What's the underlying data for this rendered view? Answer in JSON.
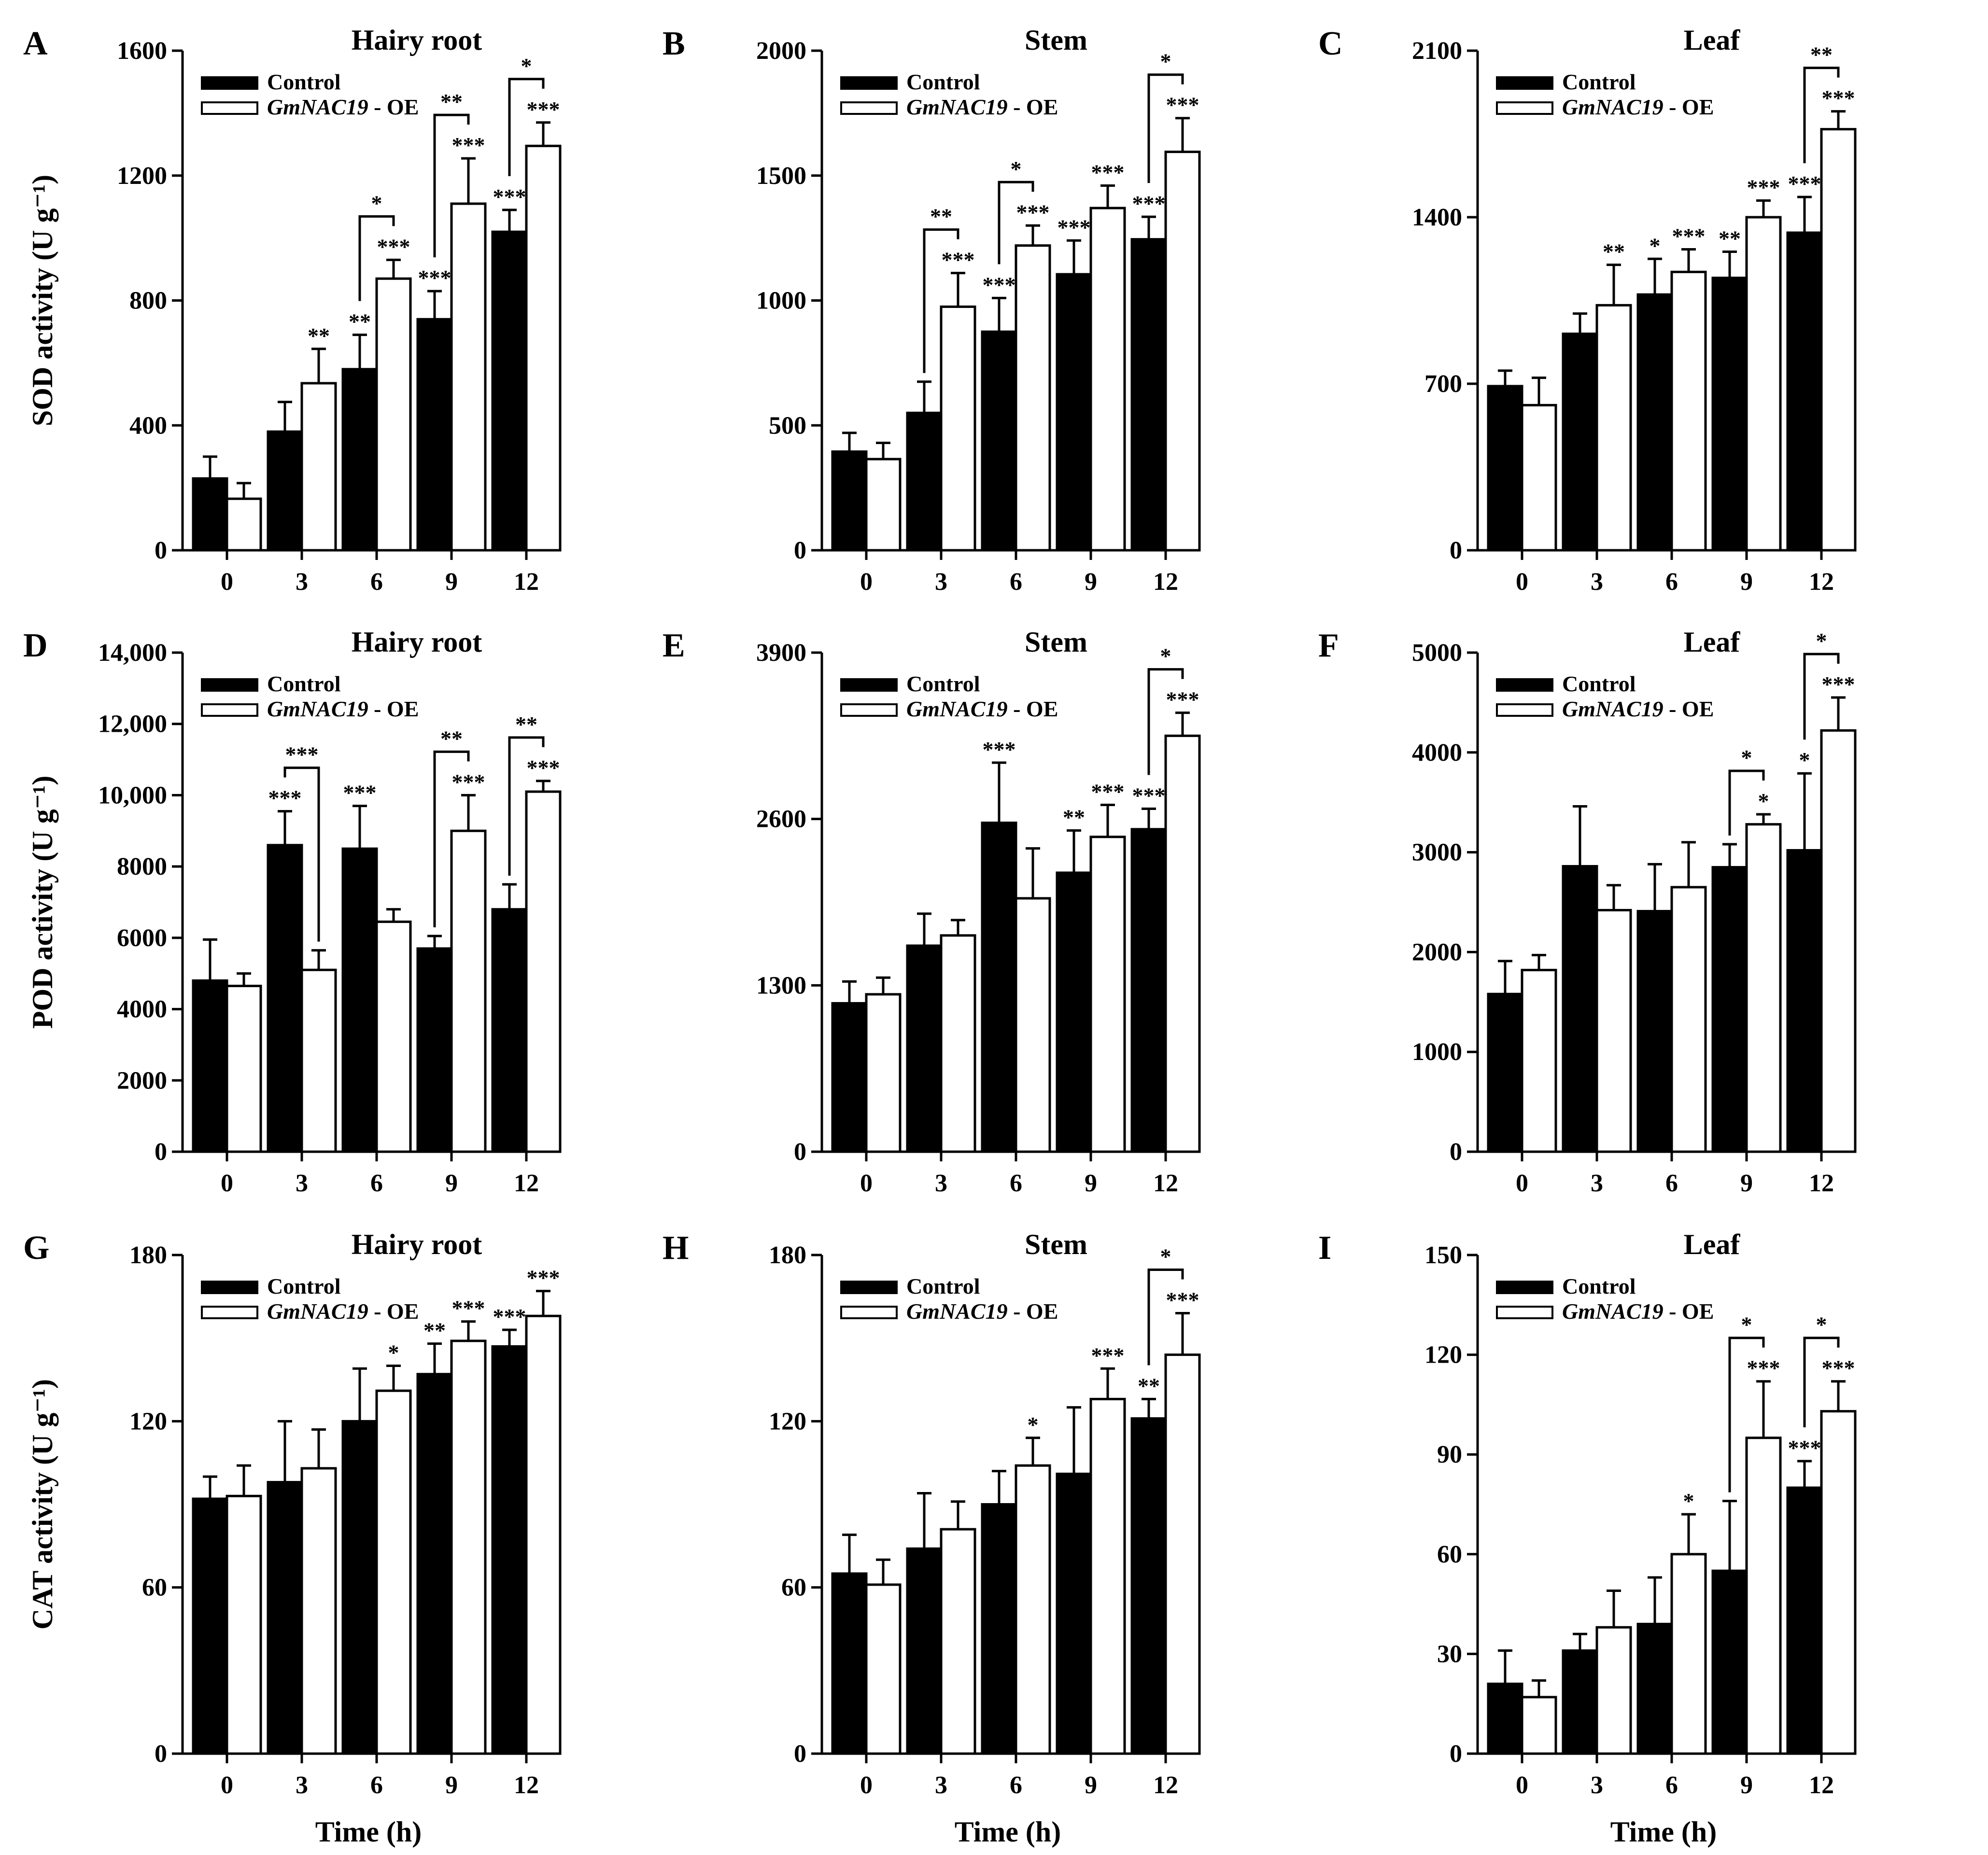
{
  "chart_data": [
    {
      "id": "A",
      "type": "bar",
      "title": "Hairy root",
      "ylabel": "SOD activity (U g⁻¹)",
      "xlabel": "",
      "categories": [
        "0",
        "3",
        "6",
        "9",
        "12"
      ],
      "ylim": [
        0,
        1600
      ],
      "yticks": [
        "0",
        "400",
        "800",
        "1200",
        "1600"
      ],
      "legend": [
        "Control",
        "GmNAC19 - OE"
      ],
      "legend_placement": "top-left",
      "series": [
        {
          "name": "Control",
          "values": [
            230,
            380,
            580,
            740,
            1020
          ],
          "errors": [
            70,
            95,
            110,
            90,
            70
          ],
          "stars": [
            "",
            "",
            "**",
            "***",
            "***"
          ]
        },
        {
          "name": "GmNAC19 - OE",
          "values": [
            165,
            535,
            870,
            1110,
            1295
          ],
          "errors": [
            50,
            110,
            60,
            145,
            75
          ],
          "stars": [
            "",
            "**",
            "***",
            "***",
            "***"
          ]
        }
      ],
      "brackets": [
        {
          "cat": 2,
          "label": "*"
        },
        {
          "cat": 3,
          "label": "**"
        },
        {
          "cat": 4,
          "label": "*"
        }
      ]
    },
    {
      "id": "B",
      "type": "bar",
      "title": "Stem",
      "ylabel": "",
      "xlabel": "",
      "categories": [
        "0",
        "3",
        "6",
        "9",
        "12"
      ],
      "ylim": [
        0,
        2000
      ],
      "yticks": [
        "0",
        "500",
        "1000",
        "1500",
        "2000"
      ],
      "legend": [
        "Control",
        "GmNAC19 - OE"
      ],
      "legend_placement": "top-left",
      "series": [
        {
          "name": "Control",
          "values": [
            395,
            550,
            875,
            1105,
            1245
          ],
          "errors": [
            75,
            125,
            135,
            135,
            90
          ],
          "stars": [
            "",
            "",
            "***",
            "***",
            "***"
          ]
        },
        {
          "name": "GmNAC19 - OE",
          "values": [
            365,
            975,
            1220,
            1370,
            1595
          ],
          "errors": [
            65,
            135,
            80,
            90,
            135
          ],
          "stars": [
            "",
            "***",
            "***",
            "***",
            "***"
          ]
        }
      ],
      "brackets": [
        {
          "cat": 1,
          "label": "**"
        },
        {
          "cat": 2,
          "label": "*"
        },
        {
          "cat": 4,
          "label": "*"
        }
      ]
    },
    {
      "id": "C",
      "type": "bar",
      "title": "Leaf",
      "ylabel": "",
      "xlabel": "",
      "categories": [
        "0",
        "3",
        "6",
        "9",
        "12"
      ],
      "ylim": [
        0,
        2100
      ],
      "yticks": [
        "0",
        "700",
        "1400",
        "2100"
      ],
      "legend": [
        "Control",
        "GmNAC19 - OE"
      ],
      "legend_placement": "top-left",
      "series": [
        {
          "name": "Control",
          "values": [
            690,
            910,
            1075,
            1145,
            1335
          ],
          "errors": [
            65,
            85,
            150,
            110,
            150
          ],
          "stars": [
            "",
            "",
            "*",
            "**",
            "***"
          ]
        },
        {
          "name": "GmNAC19 - OE",
          "values": [
            610,
            1030,
            1170,
            1400,
            1770
          ],
          "errors": [
            115,
            170,
            95,
            70,
            75
          ],
          "stars": [
            "",
            "**",
            "***",
            "***",
            "***"
          ]
        }
      ],
      "brackets": [
        {
          "cat": 4,
          "label": "**"
        }
      ]
    },
    {
      "id": "D",
      "type": "bar",
      "title": "Hairy root",
      "ylabel": "POD activity (U g⁻¹)",
      "xlabel": "",
      "categories": [
        "0",
        "3",
        "6",
        "9",
        "12"
      ],
      "ylim": [
        0,
        14000
      ],
      "yticks": [
        "0",
        "2000",
        "4000",
        "6000",
        "8000",
        "10,000",
        "12,000",
        "14,000"
      ],
      "legend": [
        "Control",
        "GmNAC19 - OE"
      ],
      "legend_placement": "top-left",
      "series": [
        {
          "name": "Control",
          "values": [
            4800,
            8600,
            8500,
            5700,
            6800
          ],
          "errors": [
            1150,
            950,
            1200,
            350,
            700
          ],
          "stars": [
            "",
            "***",
            "***",
            "",
            ""
          ]
        },
        {
          "name": "GmNAC19 - OE",
          "values": [
            4650,
            5100,
            6450,
            9000,
            10100
          ],
          "errors": [
            350,
            550,
            350,
            1000,
            300
          ],
          "stars": [
            "",
            "",
            "",
            "***",
            "***"
          ]
        }
      ],
      "brackets": [
        {
          "cat": 1,
          "label": "***"
        },
        {
          "cat": 3,
          "label": "**"
        },
        {
          "cat": 4,
          "label": "**"
        }
      ]
    },
    {
      "id": "E",
      "type": "bar",
      "title": "Stem",
      "ylabel": "",
      "xlabel": "",
      "categories": [
        "0",
        "3",
        "6",
        "9",
        "12"
      ],
      "ylim": [
        0,
        3900
      ],
      "yticks": [
        "0",
        "1300",
        "2600",
        "3900"
      ],
      "legend": [
        "Control",
        "GmNAC19 - OE"
      ],
      "legend_placement": "top-left",
      "series": [
        {
          "name": "Control",
          "values": [
            1160,
            1610,
            2570,
            2180,
            2520
          ],
          "errors": [
            170,
            250,
            470,
            330,
            160
          ],
          "stars": [
            "",
            "",
            "***",
            "**",
            "***"
          ]
        },
        {
          "name": "GmNAC19 - OE",
          "values": [
            1230,
            1690,
            1980,
            2460,
            3250
          ],
          "errors": [
            130,
            120,
            390,
            250,
            180
          ],
          "stars": [
            "",
            "",
            "",
            "***",
            "***"
          ]
        }
      ],
      "brackets": [
        {
          "cat": 4,
          "label": "*"
        }
      ]
    },
    {
      "id": "F",
      "type": "bar",
      "title": "Leaf",
      "ylabel": "",
      "xlabel": "",
      "categories": [
        "0",
        "3",
        "6",
        "9",
        "12"
      ],
      "ylim": [
        0,
        5000
      ],
      "yticks": [
        "0",
        "1000",
        "2000",
        "3000",
        "4000",
        "5000"
      ],
      "legend": [
        "Control",
        "GmNAC19 - OE"
      ],
      "legend_placement": "top-left",
      "series": [
        {
          "name": "Control",
          "values": [
            1580,
            2860,
            2410,
            2850,
            3020
          ],
          "errors": [
            330,
            600,
            470,
            230,
            770
          ],
          "stars": [
            "",
            "",
            "",
            "",
            "*"
          ]
        },
        {
          "name": "GmNAC19 - OE",
          "values": [
            1820,
            2420,
            2650,
            3280,
            4220
          ],
          "errors": [
            150,
            250,
            450,
            100,
            330
          ],
          "stars": [
            "",
            "",
            "",
            "*",
            "***"
          ]
        }
      ],
      "brackets": [
        {
          "cat": 3,
          "label": "*"
        },
        {
          "cat": 4,
          "label": "*"
        }
      ]
    },
    {
      "id": "G",
      "type": "bar",
      "title": "Hairy root",
      "ylabel": "CAT activity (U g⁻¹)",
      "xlabel": "Time (h)",
      "categories": [
        "0",
        "3",
        "6",
        "9",
        "12"
      ],
      "ylim": [
        0,
        180
      ],
      "yticks": [
        "0",
        "60",
        "120",
        "180"
      ],
      "legend": [
        "Control",
        "GmNAC19 - OE"
      ],
      "legend_placement": "top-left",
      "series": [
        {
          "name": "Control",
          "values": [
            92,
            98,
            120,
            137,
            147
          ],
          "errors": [
            8,
            22,
            19,
            11,
            6
          ],
          "stars": [
            "",
            "",
            "",
            "**",
            "***"
          ]
        },
        {
          "name": "GmNAC19 - OE",
          "values": [
            93,
            103,
            131,
            149,
            158
          ],
          "errors": [
            11,
            14,
            9,
            7,
            9
          ],
          "stars": [
            "",
            "",
            "*",
            "***",
            "***"
          ]
        }
      ],
      "brackets": []
    },
    {
      "id": "H",
      "type": "bar",
      "title": "Stem",
      "ylabel": "",
      "xlabel": "Time (h)",
      "categories": [
        "0",
        "3",
        "6",
        "9",
        "12"
      ],
      "ylim": [
        0,
        180
      ],
      "yticks": [
        "0",
        "60",
        "120",
        "180"
      ],
      "legend": [
        "Control",
        "GmNAC19 - OE"
      ],
      "legend_placement": "top-left",
      "series": [
        {
          "name": "Control",
          "values": [
            65,
            74,
            90,
            101,
            121
          ],
          "errors": [
            14,
            20,
            12,
            24,
            7
          ],
          "stars": [
            "",
            "",
            "",
            "",
            "**"
          ]
        },
        {
          "name": "GmNAC19 - OE",
          "values": [
            61,
            81,
            104,
            128,
            144
          ],
          "errors": [
            9,
            10,
            10,
            11,
            15
          ],
          "stars": [
            "",
            "",
            "*",
            "***",
            "***"
          ]
        }
      ],
      "brackets": [
        {
          "cat": 4,
          "label": "*"
        }
      ]
    },
    {
      "id": "I",
      "type": "bar",
      "title": "Leaf",
      "ylabel": "",
      "xlabel": "Time (h)",
      "categories": [
        "0",
        "3",
        "6",
        "9",
        "12"
      ],
      "ylim": [
        0,
        150
      ],
      "yticks": [
        "0",
        "30",
        "60",
        "90",
        "120",
        "150"
      ],
      "legend": [
        "Control",
        "GmNAC19 - OE"
      ],
      "legend_placement": "top-left",
      "series": [
        {
          "name": "Control",
          "values": [
            21,
            31,
            39,
            55,
            80
          ],
          "errors": [
            10,
            5,
            14,
            21,
            8
          ],
          "stars": [
            "",
            "",
            "",
            "",
            "***"
          ]
        },
        {
          "name": "GmNAC19 - OE",
          "values": [
            17,
            38,
            60,
            95,
            103
          ],
          "errors": [
            5,
            11,
            12,
            17,
            9
          ],
          "stars": [
            "",
            "",
            "*",
            "***",
            "***"
          ]
        }
      ],
      "brackets": [
        {
          "cat": 3,
          "label": "*"
        },
        {
          "cat": 4,
          "label": "*"
        }
      ]
    }
  ]
}
